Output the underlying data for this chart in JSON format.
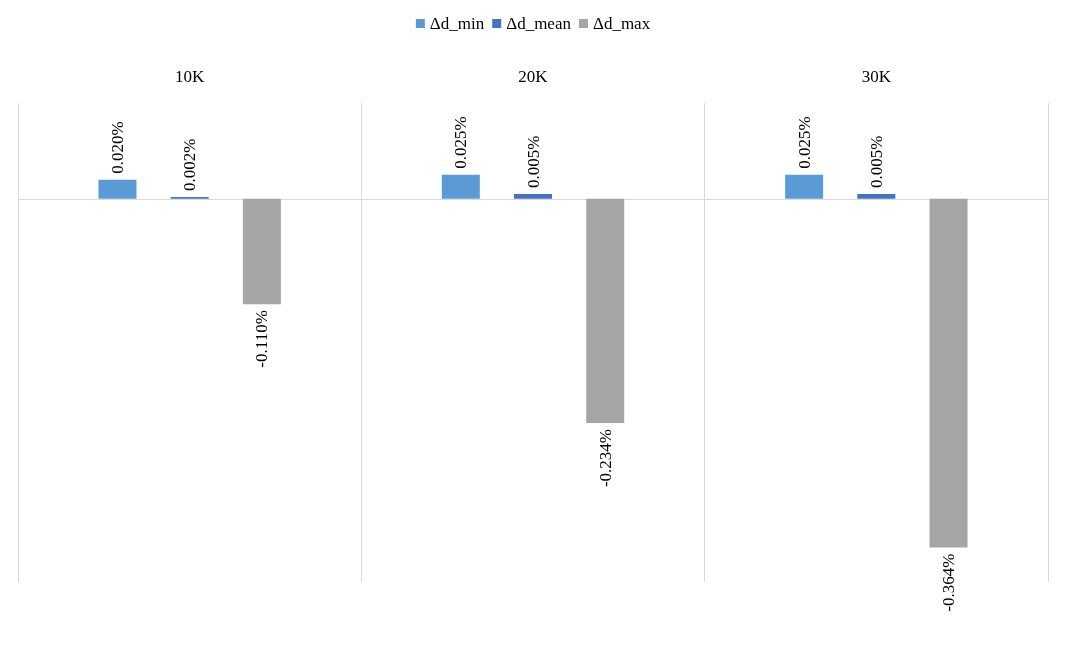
{
  "chart_data": {
    "type": "bar",
    "categories": [
      "10K",
      "20K",
      "30K"
    ],
    "series": [
      {
        "name": "Δd_min",
        "color": "#5b9bd5",
        "values": [
          0.02,
          0.025,
          0.025
        ],
        "value_labels": [
          "0.020%",
          "0.025%",
          "0.025%"
        ]
      },
      {
        "name": "Δd_mean",
        "color": "#4472c4",
        "values": [
          0.002,
          0.005,
          0.005
        ],
        "value_labels": [
          "0.002%",
          "0.005%",
          "0.005%"
        ]
      },
      {
        "name": "Δd_max",
        "color": "#a5a5a5",
        "values": [
          -0.11,
          -0.234,
          -0.364
        ],
        "value_labels": [
          "-0.110%",
          "-0.234%",
          "-0.364%"
        ]
      }
    ],
    "grid": "x",
    "legend": "top"
  }
}
